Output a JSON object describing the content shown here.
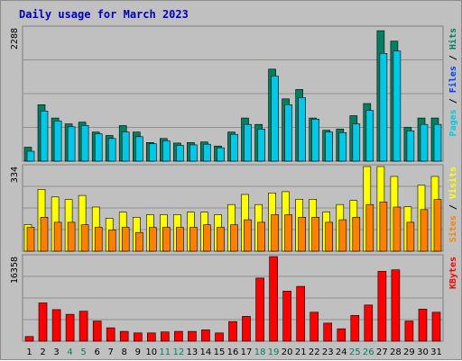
{
  "chart_data": {
    "type": "bar",
    "title": "Daily usage for March 2023",
    "categories": [
      "1",
      "2",
      "3",
      "4",
      "5",
      "6",
      "7",
      "8",
      "9",
      "10",
      "11",
      "12",
      "13",
      "14",
      "15",
      "16",
      "17",
      "18",
      "19",
      "20",
      "21",
      "22",
      "23",
      "24",
      "25",
      "26",
      "27",
      "28",
      "29",
      "30",
      "31"
    ],
    "weekend_days": [
      "4",
      "5",
      "11",
      "12",
      "18",
      "19",
      "25",
      "26"
    ],
    "panels": [
      {
        "name": "hits_files_pages",
        "ymax_label": "2288",
        "ymax": 2288,
        "right_label": [
          {
            "text": "Pages",
            "color": "#00c8e8"
          },
          {
            "text": " / ",
            "color": "#000000"
          },
          {
            "text": "Files",
            "color": "#0040ff"
          },
          {
            "text": " / ",
            "color": "#000000"
          },
          {
            "text": "Hits",
            "color": "#008060"
          }
        ],
        "series": [
          {
            "name": "Hits",
            "color": "#008060",
            "values": [
              240,
              970,
              740,
              640,
              670,
              500,
              440,
              610,
              500,
              320,
              390,
              310,
              320,
              330,
              260,
              500,
              740,
              630,
              1580,
              1070,
              1230,
              740,
              530,
              550,
              780,
              990,
              2240,
              2060,
              580,
              740,
              740
            ]
          },
          {
            "name": "Files",
            "color": "#00c8e8",
            "values": [
              170,
              860,
              690,
              590,
              610,
              470,
              390,
              500,
              420,
              300,
              350,
              270,
              280,
              290,
              230,
              460,
              630,
              550,
              1460,
              970,
              1090,
              720,
              500,
              490,
              640,
              870,
              1850,
              1890,
              520,
              630,
              630
            ]
          }
        ]
      },
      {
        "name": "visits_sites",
        "ymax_label": "334",
        "ymax": 334,
        "right_label": [
          {
            "text": "Sites",
            "color": "#ff8000"
          },
          {
            "text": " / ",
            "color": "#000000"
          },
          {
            "text": "Visits",
            "color": "#ffff00"
          }
        ],
        "series": [
          {
            "name": "Visits",
            "color": "#ffff00",
            "values": [
              105,
              244,
              214,
              204,
              220,
              174,
              130,
              154,
              134,
              144,
              144,
              144,
              154,
              154,
              144,
              184,
              224,
              184,
              230,
              235,
              205,
              205,
              155,
              184,
              200,
              334,
              334,
              295,
              175,
              260,
              295
            ]
          },
          {
            "name": "Sites",
            "color": "#ff8000",
            "values": [
              94,
              134,
              114,
              114,
              104,
              94,
              84,
              94,
              74,
              94,
              94,
              94,
              94,
              104,
              94,
              104,
              124,
              114,
              144,
              144,
              134,
              134,
              114,
              124,
              134,
              184,
              194,
              174,
              114,
              164,
              204
            ]
          }
        ]
      },
      {
        "name": "kbytes",
        "ymax_label": "16358",
        "ymax": 16358,
        "right_label": [
          {
            "text": "KBytes",
            "color": "#ff0000"
          }
        ],
        "series": [
          {
            "name": "KBytes",
            "color": "#ff0000",
            "values": [
              900,
              7400,
              6100,
              5200,
              5800,
              3900,
              2600,
              1900,
              1600,
              1600,
              1800,
              1900,
              1900,
              2200,
              1600,
              3800,
              4800,
              12200,
              16358,
              9700,
              10600,
              5600,
              3500,
              2400,
              5000,
              7000,
              13500,
              13800,
              3900,
              6200,
              5600
            ]
          }
        ]
      }
    ]
  }
}
